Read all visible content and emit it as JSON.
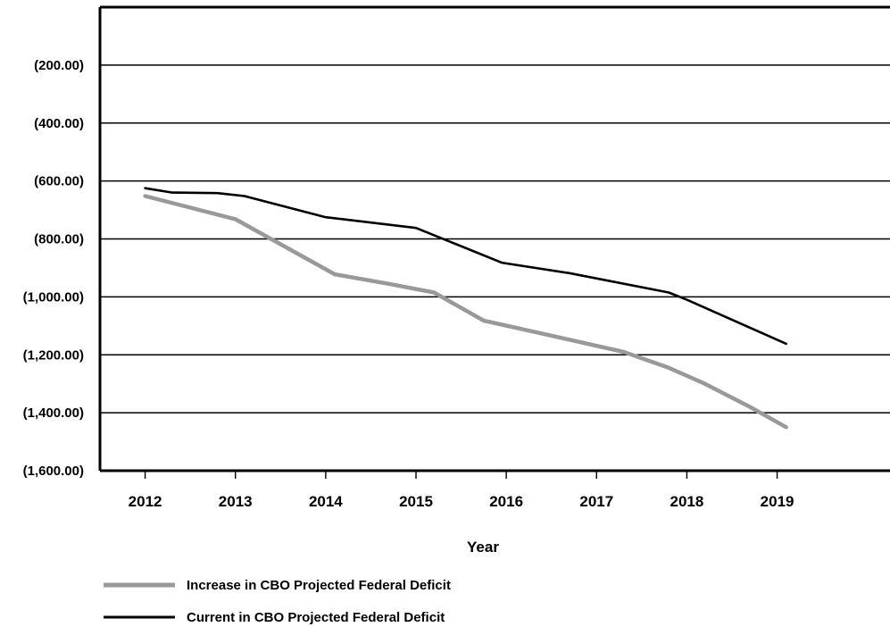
{
  "chart_data": {
    "type": "line",
    "title": "",
    "xlabel": "Year",
    "ylabel": "",
    "x_ticks": [
      "2012",
      "2013",
      "2014",
      "2015",
      "2016",
      "2017",
      "2018",
      "2019"
    ],
    "y_ticks": [
      {
        "value": -200,
        "label": "(200.00)"
      },
      {
        "value": -400,
        "label": "(400.00)"
      },
      {
        "value": -600,
        "label": "(600.00)"
      },
      {
        "value": -800,
        "label": "(800.00)"
      },
      {
        "value": -1000,
        "label": "(1,000.00)"
      },
      {
        "value": -1200,
        "label": "(1,200.00)"
      },
      {
        "value": -1400,
        "label": "(1,400.00)"
      },
      {
        "value": -1600,
        "label": "(1,600.00)"
      }
    ],
    "xlim": [
      2011.5,
      2020.25
    ],
    "ylim": [
      -1600,
      0
    ],
    "grid": "horizontal",
    "legend_position": "bottom-left",
    "series": [
      {
        "name": "Increase in CBO Projected Federal Deficit",
        "color": "#999999",
        "points": [
          [
            2012.0,
            -652
          ],
          [
            2013.0,
            -732
          ],
          [
            2014.1,
            -922
          ],
          [
            2014.7,
            -955
          ],
          [
            2015.2,
            -985
          ],
          [
            2015.75,
            -1082
          ],
          [
            2016.3,
            -1120
          ],
          [
            2017.3,
            -1190
          ],
          [
            2017.8,
            -1245
          ],
          [
            2018.2,
            -1300
          ],
          [
            2018.7,
            -1380
          ],
          [
            2019.1,
            -1450
          ]
        ]
      },
      {
        "name": "Current in CBO Projected Federal Deficit",
        "color": "#000000",
        "points": [
          [
            2012.0,
            -625
          ],
          [
            2012.3,
            -640
          ],
          [
            2012.8,
            -642
          ],
          [
            2013.1,
            -652
          ],
          [
            2014.0,
            -725
          ],
          [
            2015.0,
            -762
          ],
          [
            2015.95,
            -882
          ],
          [
            2016.7,
            -918
          ],
          [
            2017.8,
            -985
          ],
          [
            2018.0,
            -1010
          ],
          [
            2019.1,
            -1162
          ]
        ]
      }
    ]
  }
}
